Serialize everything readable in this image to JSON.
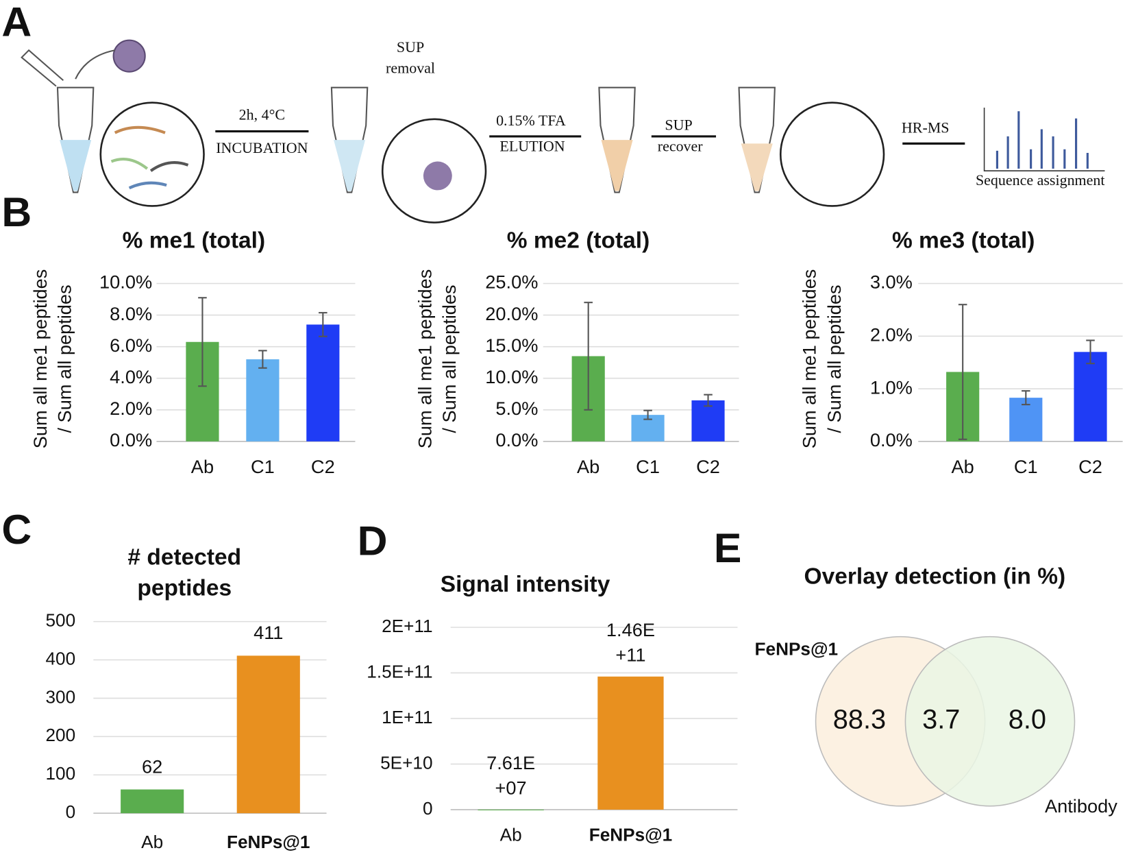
{
  "panel_labels": [
    "A",
    "B",
    "C",
    "D",
    "E"
  ],
  "diagram": {
    "labels": [
      "2h, 4°C",
      "INCUBATION",
      "SUP",
      "removal",
      "0.15% TFA",
      "ELUTION",
      "SUP",
      "recover",
      "HR-MS",
      "Sequence assignment"
    ]
  },
  "chart_data": [
    {
      "type": "bar",
      "title": "% me1 (total)",
      "ylabel": [
        "Sum all me1 peptides",
        "/ Sum all peptides"
      ],
      "categories": [
        "Ab",
        "C1",
        "C2"
      ],
      "values": [
        6.3,
        5.2,
        7.4
      ],
      "errors": [
        2.8,
        0.55,
        0.75
      ],
      "colors": [
        "#5aad4e",
        "#63b0f0",
        "#1f3cf5"
      ],
      "ylim": [
        0,
        10
      ],
      "yticks": [
        {
          "value": 0,
          "label": "0.0%"
        },
        {
          "value": 2,
          "label": "2.0%"
        },
        {
          "value": 4,
          "label": "4.0%"
        },
        {
          "value": 6,
          "label": "6.0%"
        },
        {
          "value": 8,
          "label": "8.0%"
        },
        {
          "value": 10,
          "label": "10.0%"
        }
      ],
      "grid": true
    },
    {
      "type": "bar",
      "title": "% me2 (total)",
      "ylabel": [
        "Sum all me1 peptides",
        "/ Sum all peptides"
      ],
      "categories": [
        "Ab",
        "C1",
        "C2"
      ],
      "values": [
        13.5,
        4.2,
        6.5
      ],
      "errors": [
        8.5,
        0.7,
        0.9
      ],
      "colors": [
        "#5aad4e",
        "#63b0f0",
        "#1f3cf5"
      ],
      "ylim": [
        0,
        25
      ],
      "yticks": [
        {
          "value": 0,
          "label": "0.0%"
        },
        {
          "value": 5,
          "label": "5.0%"
        },
        {
          "value": 10,
          "label": "10.0%"
        },
        {
          "value": 15,
          "label": "15.0%"
        },
        {
          "value": 20,
          "label": "20.0%"
        },
        {
          "value": 25,
          "label": "25.0%"
        }
      ],
      "grid": true
    },
    {
      "type": "bar",
      "title": "% me3 (total)",
      "ylabel": [
        "Sum all me1 peptides",
        "/ Sum all peptides"
      ],
      "categories": [
        "Ab",
        "C1",
        "C2"
      ],
      "values": [
        1.32,
        0.83,
        1.7
      ],
      "errors": [
        1.28,
        0.13,
        0.22
      ],
      "colors": [
        "#5aad4e",
        "#4f94f5",
        "#1f3cf5"
      ],
      "ylim": [
        0,
        3
      ],
      "yticks": [
        {
          "value": 0,
          "label": "0.0%"
        },
        {
          "value": 1,
          "label": "1.0%"
        },
        {
          "value": 2,
          "label": "2.0%"
        },
        {
          "value": 3,
          "label": "3.0%"
        }
      ],
      "grid": true
    },
    {
      "type": "bar",
      "title": [
        "# detected",
        "peptides"
      ],
      "categories": [
        "Ab",
        "FeNPs@1"
      ],
      "category_weights": [
        "normal",
        "bold"
      ],
      "values": [
        62,
        411
      ],
      "colors": [
        "#5aad4e",
        "#e8901f"
      ],
      "data_labels": true,
      "ylim": [
        0,
        500
      ],
      "yticks": [
        0,
        100,
        200,
        300,
        400,
        500
      ],
      "grid": true
    },
    {
      "type": "bar",
      "title": [
        "Signal intensity"
      ],
      "categories": [
        "Ab",
        "FeNPs@1"
      ],
      "category_weights": [
        "normal",
        "bold"
      ],
      "values": [
        76100000,
        146000000000
      ],
      "value_labels": [
        [
          "7.61E",
          "+07"
        ],
        [
          "1.46E",
          "+11"
        ]
      ],
      "colors": [
        "#5aad4e",
        "#e8901f"
      ],
      "ylim": [
        0,
        200000000000
      ],
      "yticks": [
        0,
        {
          "value": 50000000000,
          "label": "5E+10"
        },
        {
          "value": 100000000000,
          "label": "1E+11"
        },
        {
          "value": 150000000000,
          "label": "1.5E+11"
        },
        {
          "value": 200000000000,
          "label": "2E+11"
        }
      ],
      "grid": true
    },
    {
      "type": "venn",
      "title": "Overlay detection (in %)",
      "sets": [
        {
          "name": "FeNPs@1",
          "color": "#fbeedd"
        },
        {
          "name": "Antibody",
          "color": "#eaf6e4"
        }
      ],
      "values": [
        88.3,
        3.7,
        8.0
      ],
      "value_labels": [
        "88.3",
        "3.7",
        "8.0"
      ]
    }
  ]
}
